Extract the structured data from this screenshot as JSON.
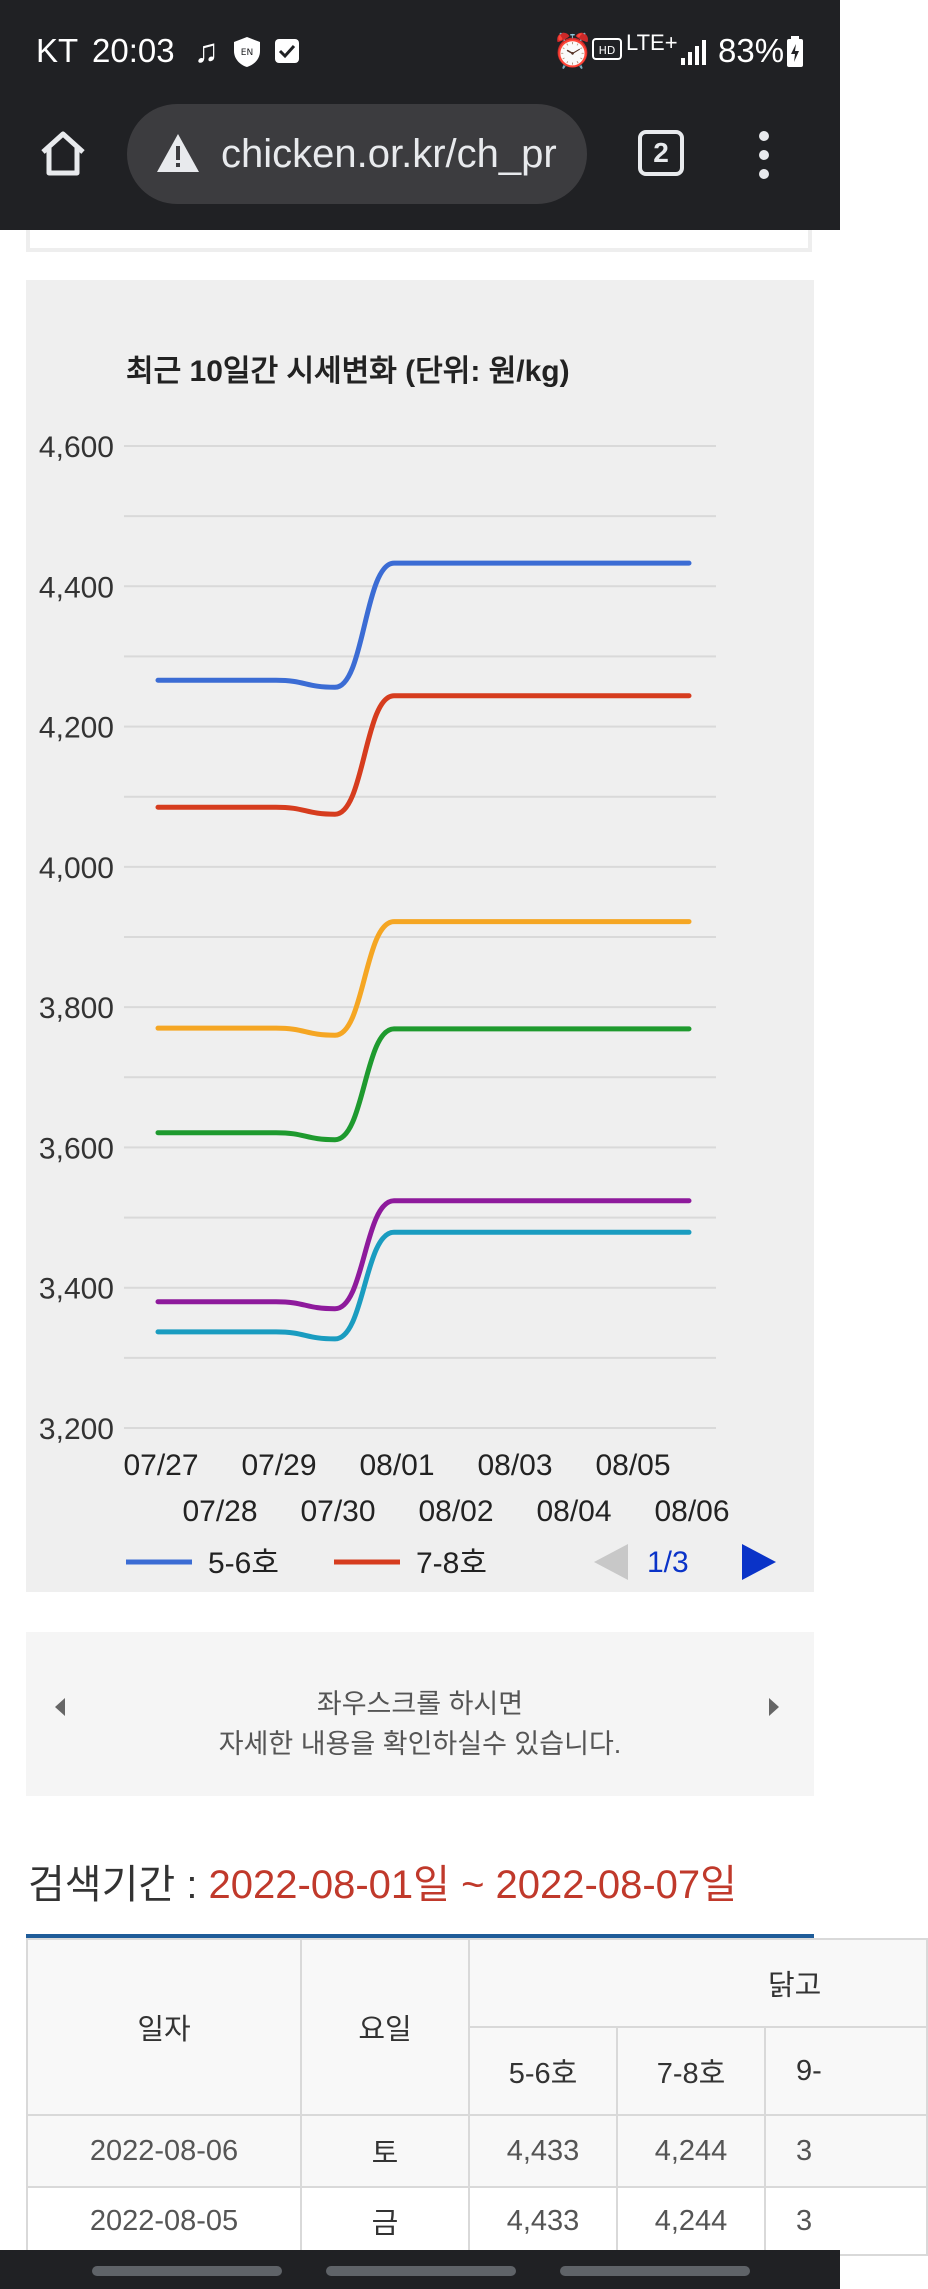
{
  "status_bar": {
    "carrier": "KT",
    "time": "20:03",
    "network": "LTE+",
    "battery": "83%",
    "icons": [
      "music-note-icon",
      "vpn-shield-icon",
      "check-box-icon",
      "alarm-icon",
      "hd-icon",
      "signal-icon",
      "battery-icon"
    ]
  },
  "browser": {
    "url": "chicken.or.kr/ch_pr",
    "tab_count": "2",
    "icons": [
      "home-icon",
      "warning-icon",
      "more-vert-icon"
    ]
  },
  "chart": {
    "title": "최근 10일간 시세변화 (단위: 원/kg)",
    "legend_page": "1/3",
    "colors": {
      "grid": "#d9d9d9",
      "prev_arrow": "#c8c8c8",
      "next_arrow": "#0a33c8"
    }
  },
  "chart_data": {
    "type": "line",
    "title": "최근 10일간 시세변화 (단위: 원/kg)",
    "ylabel": "원/kg",
    "ylim": [
      3200,
      4600
    ],
    "yticks": [
      "3,200",
      "3,400",
      "3,600",
      "3,800",
      "4,000",
      "4,200",
      "4,400",
      "4,600"
    ],
    "x": [
      "07/27",
      "07/28",
      "07/29",
      "07/30",
      "08/01",
      "08/02",
      "08/03",
      "08/04",
      "08/05",
      "08/06"
    ],
    "grid": true,
    "legend_position": "bottom",
    "series": [
      {
        "name": "5-6호",
        "color": "#3b6cd4",
        "values": [
          4266,
          4266,
          4266,
          4256,
          4433,
          4433,
          4433,
          4433,
          4433,
          4433
        ]
      },
      {
        "name": "7-8호",
        "color": "#d63c1e",
        "values": [
          4085,
          4085,
          4085,
          4075,
          4244,
          4244,
          4244,
          4244,
          4244,
          4244
        ]
      },
      {
        "color": "#f5a623",
        "values": [
          3770,
          3770,
          3770,
          3760,
          3922,
          3922,
          3922,
          3922,
          3922,
          3922
        ]
      },
      {
        "color": "#1e9a2e",
        "values": [
          3621,
          3621,
          3621,
          3611,
          3769,
          3769,
          3769,
          3769,
          3769,
          3769
        ]
      },
      {
        "color": "#8e1a9c",
        "values": [
          3380,
          3380,
          3380,
          3370,
          3524,
          3524,
          3524,
          3524,
          3524,
          3524
        ]
      },
      {
        "color": "#1a9cc0",
        "values": [
          3337,
          3337,
          3337,
          3327,
          3479,
          3479,
          3479,
          3479,
          3479,
          3479
        ]
      }
    ]
  },
  "scroll_hint": {
    "line1": "좌우스크롤 하시면",
    "line2": "자세한 내용을 확인하실수 있습니다."
  },
  "search": {
    "label": "검색기간 : ",
    "range": "2022-08-01일 ~ 2022-08-07일",
    "range_color": "#c0392b"
  },
  "table": {
    "headers": {
      "date": "일자",
      "weekday": "요일",
      "group": "닭고",
      "c1": "5-6호",
      "c2": "7-8호",
      "c3": "9-"
    },
    "rows": [
      {
        "date": "2022-08-06",
        "weekday": "토",
        "c1": "4,433",
        "c2": "4,244",
        "c3": "3"
      },
      {
        "date": "2022-08-05",
        "weekday": "금",
        "c1": "4,433",
        "c2": "4,244",
        "c3": "3"
      }
    ]
  }
}
